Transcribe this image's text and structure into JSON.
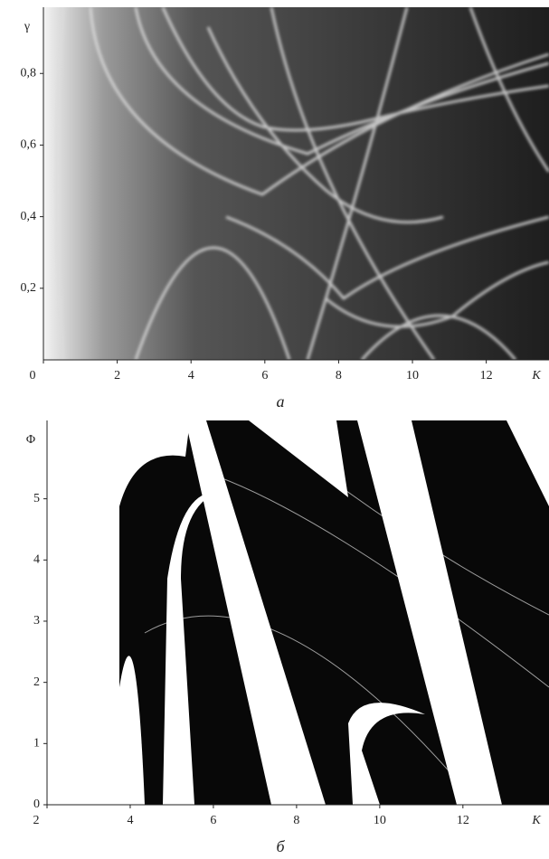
{
  "chart_data": [
    {
      "type": "heatmap",
      "caption": "а",
      "xlabel": "K",
      "ylabel": "γ",
      "xlim": [
        0,
        13.7
      ],
      "ylim": [
        0,
        0.985
      ],
      "xticks": [
        0,
        2,
        4,
        6,
        8,
        10,
        12
      ],
      "yticks": [
        {
          "value": 0.2,
          "label": "0,2"
        },
        {
          "value": 0.4,
          "label": "0,4"
        },
        {
          "value": 0.6,
          "label": "0,6"
        },
        {
          "value": 0.8,
          "label": "0,8"
        }
      ]
    },
    {
      "type": "heatmap",
      "caption": "б",
      "xlabel": "K",
      "ylabel": "Φ",
      "xlim": [
        2,
        14.07
      ],
      "ylim": [
        0,
        6.28
      ],
      "xticks": [
        2,
        4,
        6,
        8,
        10,
        12
      ],
      "yticks": [
        0,
        1,
        2,
        3,
        4,
        5
      ]
    }
  ]
}
